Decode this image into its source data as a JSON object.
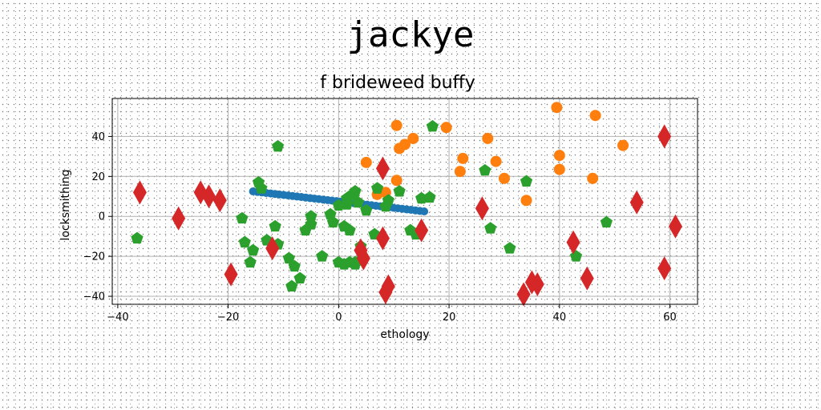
{
  "header": {
    "title": "jackye"
  },
  "colors": {
    "blue": "#1f77b4",
    "orange": "#ff7f0e",
    "green": "#2ca02c",
    "red": "#d62728",
    "grid": "#b0b0b0"
  },
  "chart_data": {
    "type": "scatter",
    "title": "f brideweed buffy",
    "xlabel": "ethology",
    "ylabel": "locksmithing",
    "xlim": [
      -41,
      65
    ],
    "ylim": [
      -44,
      59
    ],
    "xticks": [
      -40,
      -20,
      0,
      20,
      40,
      60
    ],
    "yticks": [
      -40,
      -20,
      0,
      20,
      40
    ],
    "xtick_labels": [
      "−40",
      "−20",
      "0",
      "20",
      "40",
      "60"
    ],
    "ytick_labels": [
      "−40",
      "−20",
      "0",
      "20",
      "40"
    ],
    "grid": true,
    "series": [
      {
        "marker": "circle",
        "color": "#1f77b4",
        "size": 5,
        "line": {
          "x0": -15.5,
          "y0": 12.5,
          "x1": 15.5,
          "y1": 2.5,
          "count": 40
        }
      },
      {
        "marker": "circle",
        "color": "#ff7f0e",
        "size": 7,
        "x": [
          5,
          10.5,
          11,
          12,
          13.5,
          19.5,
          22.5,
          22,
          10.5,
          7,
          8.5,
          27,
          28.5,
          30,
          34,
          39.5,
          40,
          40,
          46.5,
          46,
          51.5
        ],
        "y": [
          27,
          45.5,
          34,
          36,
          39,
          44.5,
          29,
          22.5,
          18,
          11,
          12,
          39,
          27.5,
          19,
          8,
          54.5,
          30.5,
          23.5,
          50.5,
          19,
          35.5
        ]
      },
      {
        "marker": "pentagon",
        "color": "#2ca02c",
        "size": 8,
        "x": [
          -36.5,
          -11,
          -14.5,
          -14,
          -17.5,
          -17,
          -15.5,
          -13,
          -11.5,
          -11,
          -16,
          -9,
          -8.5,
          -8,
          -7,
          -6,
          -5,
          -5,
          -3,
          -1.5,
          -1,
          0,
          1,
          1.5,
          2,
          2.5,
          3,
          3,
          4,
          4,
          3,
          2,
          1,
          0,
          1.5,
          3.5,
          5,
          6.5,
          7,
          8.5,
          9,
          11,
          13,
          14,
          15,
          17,
          16.5,
          26.5,
          27.5,
          31,
          34,
          43,
          48.5
        ],
        "y": [
          -11,
          35,
          17,
          14,
          -1,
          -13,
          -17,
          -12,
          -5,
          -14,
          -23,
          -21,
          -35,
          -25,
          -31,
          -7,
          -4,
          0,
          -20,
          1,
          -3,
          5.5,
          -5,
          6,
          -7,
          11,
          12.5,
          -24,
          -22,
          -15,
          -23,
          -23,
          -24,
          -23,
          9,
          7,
          3,
          -9,
          14,
          5,
          8,
          12.5,
          -7,
          -9,
          9,
          45,
          9.5,
          23,
          -6,
          -16,
          17.5,
          -20,
          -3
        ]
      },
      {
        "marker": "diamond",
        "color": "#d62728",
        "size": 10,
        "x": [
          -36,
          -29,
          -25,
          -23.5,
          -21.5,
          -19.5,
          -12,
          4,
          4.5,
          8,
          8,
          8.5,
          9,
          15,
          26,
          33.5,
          35,
          36,
          42.5,
          45,
          54,
          59,
          59,
          61
        ],
        "y": [
          12,
          -1,
          12,
          10,
          8,
          -29,
          -16,
          -17,
          -21,
          24,
          -11,
          -38,
          -35,
          -7,
          4,
          -39,
          -33,
          -34,
          -13,
          -31,
          7,
          40,
          -26,
          -5
        ]
      }
    ]
  }
}
